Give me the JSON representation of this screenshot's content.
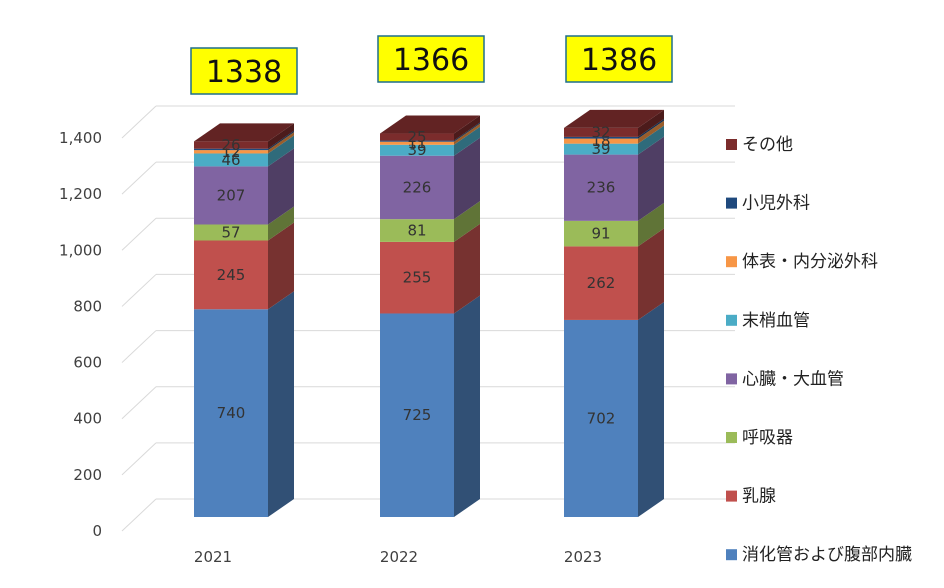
{
  "chart_data": {
    "type": "bar",
    "stacked": true,
    "style": "3d-column",
    "categories": [
      "2021",
      "2022",
      "2023"
    ],
    "ylim": [
      0,
      1400
    ],
    "yticks": [
      "0",
      "200",
      "400",
      "600",
      "800",
      "1,000",
      "1,200",
      "1,400"
    ],
    "ytick_values": [
      0,
      200,
      400,
      600,
      800,
      1000,
      1200,
      1400
    ],
    "grid": true,
    "legend_position": "right",
    "totals": [
      "1338",
      "1366",
      "1386"
    ],
    "series": [
      {
        "name": "消化管および腹部内臓",
        "color": "#4f81bd",
        "values": [
          740,
          725,
          702
        ],
        "labels": [
          "740",
          "725",
          "702"
        ]
      },
      {
        "name": "乳腺",
        "color": "#c0504d",
        "values": [
          245,
          255,
          262
        ],
        "labels": [
          "245",
          "255",
          "262"
        ]
      },
      {
        "name": "呼吸器",
        "color": "#9bbb59",
        "values": [
          57,
          81,
          91
        ],
        "labels": [
          "57",
          "81",
          "91"
        ]
      },
      {
        "name": "心臓・大血管",
        "color": "#8064a2",
        "values": [
          207,
          226,
          236
        ],
        "labels": [
          "207",
          "226",
          "236"
        ]
      },
      {
        "name": "末梢血管",
        "color": "#4bacc6",
        "values": [
          46,
          39,
          39
        ],
        "labels": [
          "46",
          "39",
          "39"
        ]
      },
      {
        "name": "体表・内分泌外科",
        "color": "#f79646",
        "values": [
          12,
          11,
          18
        ],
        "labels": [
          "12",
          "11",
          "18"
        ]
      },
      {
        "name": "小児外科",
        "color": "#1f497d",
        "values": [
          5,
          4,
          6
        ],
        "labels": [
          "",
          "",
          ""
        ]
      },
      {
        "name": "その他",
        "color": "#7b2c2c",
        "values": [
          26,
          25,
          32
        ],
        "labels": [
          "26",
          "25",
          "32"
        ]
      }
    ]
  }
}
